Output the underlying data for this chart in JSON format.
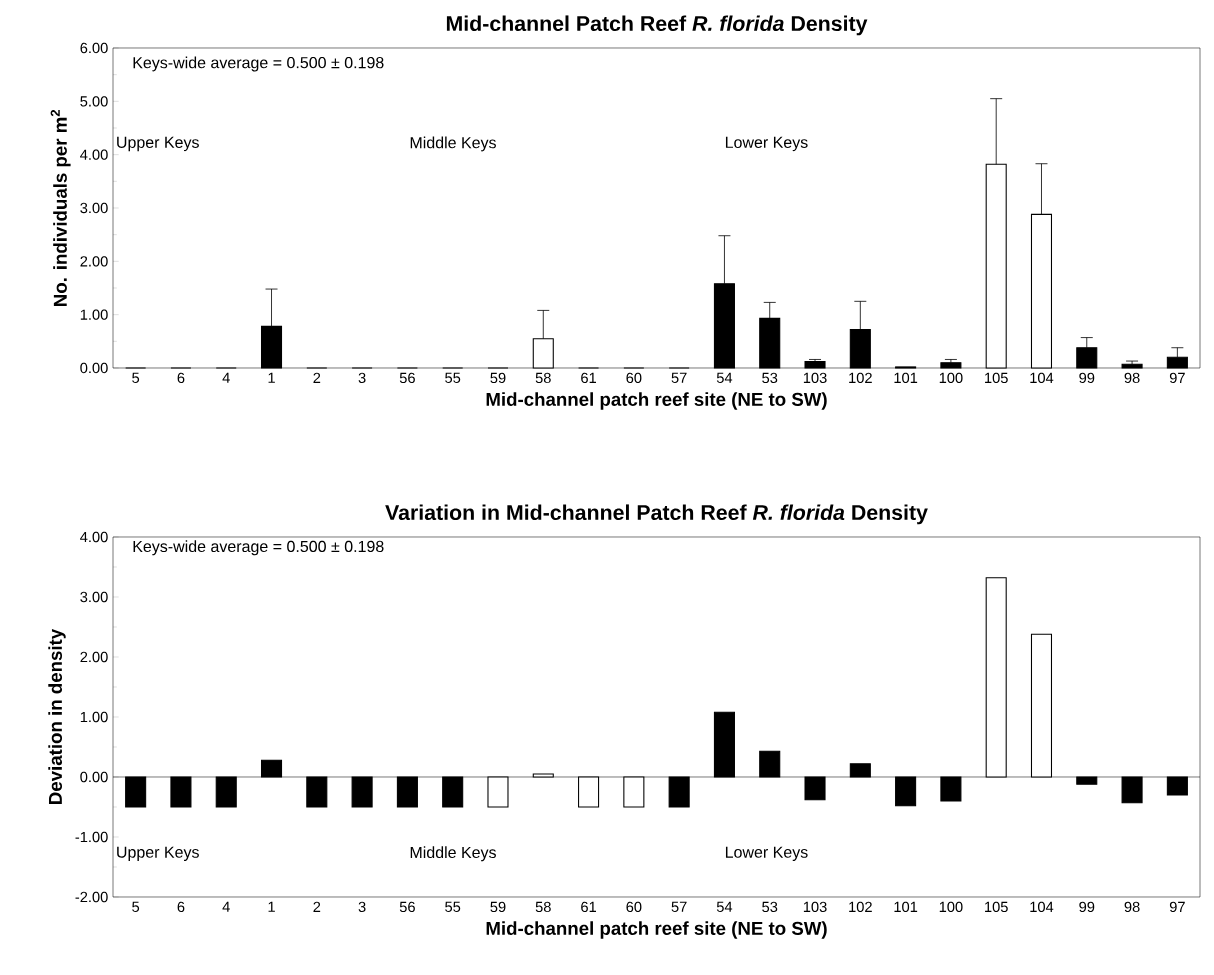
{
  "chart_data": [
    {
      "type": "bar",
      "title": "Mid-channel Patch Reef *R. florida* Density",
      "xlabel": "Mid-channel patch reef site (NE to SW)",
      "ylabel": "No. individuals per m$^{2}$",
      "categories": [
        "5",
        "6",
        "4",
        "1",
        "2",
        "3",
        "56",
        "55",
        "59",
        "58",
        "61",
        "60",
        "57",
        "54",
        "53",
        "103",
        "102",
        "101",
        "100",
        "105",
        "104",
        "99",
        "98",
        "97"
      ],
      "values": [
        0,
        0,
        0,
        0.78,
        0,
        0,
        0,
        0,
        0,
        0.55,
        0,
        0,
        0,
        1.58,
        0.93,
        0.12,
        0.72,
        0.02,
        0.1,
        3.82,
        2.88,
        0.38,
        0.07,
        0.2
      ],
      "colors": [
        "#000000",
        "#000000",
        "#000000",
        "#000000",
        "#000000",
        "#000000",
        "#000000",
        "#000000",
        "#ffffff",
        "#ffffff",
        "#ffffff",
        "#ffffff",
        "#000000",
        "#000000",
        "#000000",
        "#000000",
        "#000000",
        "#000000",
        "#000000",
        "#ffffff",
        "#ffffff",
        "#000000",
        "#000000",
        "#000000"
      ],
      "errors": [
        null,
        null,
        null,
        [
          0.78,
          1.48
        ],
        null,
        null,
        null,
        null,
        null,
        [
          0.55,
          1.08
        ],
        null,
        null,
        null,
        [
          1.58,
          2.48
        ],
        [
          0.93,
          1.23
        ],
        [
          0.12,
          0.16
        ],
        [
          0.72,
          1.25
        ],
        null,
        [
          0.1,
          0.16
        ],
        [
          3.82,
          5.05
        ],
        [
          2.88,
          3.83
        ],
        [
          0.38,
          0.57
        ],
        [
          0.07,
          0.13
        ],
        [
          0.2,
          0.38
        ]
      ],
      "ylim": [
        0,
        6
      ],
      "yticks": [
        {
          "value": 0,
          "label": "0.00"
        },
        {
          "value": 1,
          "label": "1.00"
        },
        {
          "value": 2,
          "label": "2.00"
        },
        {
          "value": 3,
          "label": "3.00"
        },
        {
          "value": 4,
          "label": "4.00"
        },
        {
          "value": 5,
          "label": "5.00"
        },
        {
          "value": 6,
          "label": "6.00"
        }
      ],
      "annotations": [
        "Keys-wide average = 0.500 ± 0.198",
        "Upper Keys",
        "Middle Keys",
        "Lower Keys"
      ]
    },
    {
      "type": "bar",
      "title": "Variation in Mid-channel Patch Reef *R. florida* Density",
      "xlabel": "Mid-channel patch reef site (NE to SW)",
      "ylabel": "Deviation in density",
      "categories": [
        "5",
        "6",
        "4",
        "1",
        "2",
        "3",
        "56",
        "55",
        "59",
        "58",
        "61",
        "60",
        "57",
        "54",
        "53",
        "103",
        "102",
        "101",
        "100",
        "105",
        "104",
        "99",
        "98",
        "97"
      ],
      "values": [
        -0.5,
        -0.5,
        -0.5,
        0.28,
        -0.5,
        -0.5,
        -0.5,
        -0.5,
        -0.5,
        0.05,
        -0.5,
        -0.5,
        -0.5,
        1.08,
        0.43,
        -0.38,
        0.22,
        -0.48,
        -0.4,
        3.32,
        2.38,
        -0.12,
        -0.43,
        -0.3
      ],
      "colors": [
        "#000000",
        "#000000",
        "#000000",
        "#000000",
        "#000000",
        "#000000",
        "#000000",
        "#000000",
        "#ffffff",
        "#ffffff",
        "#ffffff",
        "#ffffff",
        "#000000",
        "#000000",
        "#000000",
        "#000000",
        "#000000",
        "#000000",
        "#000000",
        "#ffffff",
        "#ffffff",
        "#000000",
        "#000000",
        "#000000"
      ],
      "ylim": [
        -2,
        4
      ],
      "yticks": [
        {
          "value": -2,
          "label": "-2.00"
        },
        {
          "value": -1,
          "label": "-1.00"
        },
        {
          "value": 0,
          "label": "0.00"
        },
        {
          "value": 1,
          "label": "1.00"
        },
        {
          "value": 2,
          "label": "2.00"
        },
        {
          "value": 3,
          "label": "3.00"
        },
        {
          "value": 4,
          "label": "4.00"
        }
      ],
      "annotations": [
        "Keys-wide average = 0.500 ± 0.198",
        "Upper Keys",
        "Middle Keys",
        "Lower Keys"
      ]
    }
  ]
}
